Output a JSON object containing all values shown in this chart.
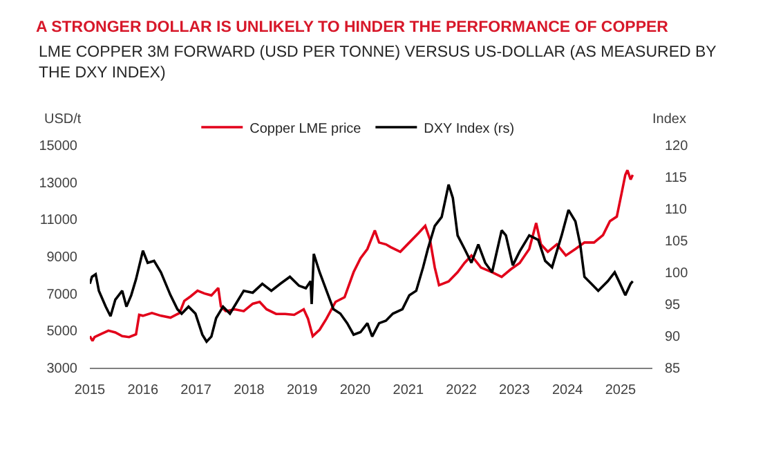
{
  "chart_data": {
    "type": "line",
    "title": "A STRONGER DOLLAR IS UNLIKELY TO HINDER THE PERFORMANCE OF COPPER",
    "subtitle": "LME COPPER 3M FORWARD (USD PER TONNE) VERSUS US-DOLLAR (AS MEASURED BY THE DXY INDEX)",
    "ylabel": "USD/t",
    "y2label": "Index",
    "xlim": [
      2015,
      2025.6
    ],
    "xticks": [
      2015,
      2016,
      2017,
      2018,
      2019,
      2020,
      2021,
      2022,
      2023,
      2024,
      2025
    ],
    "ylim": [
      3000,
      15000
    ],
    "yticks": [
      3000,
      5000,
      7000,
      9000,
      11000,
      13000,
      15000
    ],
    "y2lim": [
      85,
      120
    ],
    "y2ticks": [
      85,
      90,
      95,
      100,
      105,
      110,
      115,
      120
    ],
    "grid": false,
    "legend": "top",
    "line_style": "solid",
    "series": [
      {
        "name": "Copper LME price",
        "color": "#e2001a",
        "x": [
          2015.0,
          2015.05,
          2015.09,
          2015.2,
          2015.35,
          2015.48,
          2015.61,
          2015.74,
          2015.87,
          2015.93,
          2016.0,
          2016.17,
          2016.34,
          2016.52,
          2016.69,
          2016.78,
          2016.9,
          2017.03,
          2017.16,
          2017.29,
          2017.42,
          2017.47,
          2017.56,
          2017.73,
          2017.9,
          2018.07,
          2018.2,
          2018.33,
          2018.51,
          2018.68,
          2018.85,
          2019.03,
          2019.11,
          2019.2,
          2019.33,
          2019.46,
          2019.63,
          2019.8,
          2019.97,
          2020.1,
          2020.23,
          2020.37,
          2020.45,
          2020.58,
          2020.67,
          2020.85,
          2021.02,
          2021.19,
          2021.32,
          2021.41,
          2021.5,
          2021.58,
          2021.76,
          2021.93,
          2022.06,
          2022.19,
          2022.37,
          2022.58,
          2022.76,
          2022.93,
          2023.1,
          2023.28,
          2023.41,
          2023.5,
          2023.63,
          2023.8,
          2023.97,
          2024.15,
          2024.32,
          2024.5,
          2024.67,
          2024.8,
          2024.93,
          2025.02,
          2025.09,
          2025.13,
          2025.19,
          2025.23
        ],
        "values": [
          4700,
          4450,
          4650,
          4800,
          5000,
          4900,
          4700,
          4650,
          4800,
          5850,
          5800,
          5950,
          5800,
          5700,
          5950,
          6600,
          6850,
          7150,
          7000,
          6900,
          7300,
          6300,
          6050,
          6150,
          6050,
          6450,
          6550,
          6150,
          5900,
          5900,
          5850,
          6150,
          5650,
          4700,
          5050,
          5650,
          6550,
          6800,
          8150,
          8900,
          9400,
          10400,
          9750,
          9650,
          9500,
          9250,
          9750,
          10250,
          10650,
          9900,
          8400,
          7450,
          7650,
          8150,
          8650,
          9050,
          8400,
          8150,
          7900,
          8300,
          8650,
          9400,
          10800,
          9650,
          9250,
          9650,
          9050,
          9400,
          9750,
          9750,
          10150,
          10900,
          11150,
          12400,
          13400,
          13650,
          13150,
          13400
        ]
      },
      {
        "name": "DXY Index (rs)",
        "color": "#000000",
        "axis": "y2",
        "x": [
          2015.0,
          2015.04,
          2015.11,
          2015.17,
          2015.3,
          2015.39,
          2015.48,
          2015.61,
          2015.69,
          2015.78,
          2015.87,
          2016.0,
          2016.09,
          2016.21,
          2016.34,
          2016.52,
          2016.65,
          2016.73,
          2016.86,
          2016.99,
          2017.12,
          2017.2,
          2017.29,
          2017.38,
          2017.51,
          2017.64,
          2017.77,
          2017.9,
          2018.07,
          2018.25,
          2018.42,
          2018.59,
          2018.77,
          2018.94,
          2019.07,
          2019.16,
          2019.18,
          2019.22,
          2019.33,
          2019.46,
          2019.59,
          2019.72,
          2019.85,
          2019.97,
          2020.1,
          2020.23,
          2020.32,
          2020.45,
          2020.58,
          2020.71,
          2020.89,
          2021.02,
          2021.15,
          2021.28,
          2021.37,
          2021.5,
          2021.63,
          2021.76,
          2021.84,
          2021.93,
          2022.06,
          2022.19,
          2022.32,
          2022.45,
          2022.58,
          2022.76,
          2022.84,
          2022.97,
          2023.1,
          2023.28,
          2023.45,
          2023.58,
          2023.71,
          2023.89,
          2024.02,
          2024.15,
          2024.24,
          2024.32,
          2024.45,
          2024.58,
          2024.76,
          2024.89,
          2024.97,
          2025.09,
          2025.19,
          2025.23
        ],
        "values": [
          98.2,
          99.3,
          99.7,
          97.1,
          94.6,
          93.1,
          95.7,
          97.1,
          94.6,
          96.4,
          98.9,
          103.4,
          101.5,
          101.8,
          100.0,
          96.4,
          94.2,
          93.5,
          94.6,
          93.5,
          90.2,
          89.1,
          89.9,
          92.8,
          94.6,
          93.5,
          95.3,
          97.1,
          96.8,
          98.2,
          97.1,
          98.2,
          99.3,
          97.9,
          97.5,
          98.6,
          95.0,
          102.9,
          100.0,
          97.1,
          94.2,
          93.5,
          92.0,
          90.2,
          90.6,
          92.0,
          89.9,
          92.0,
          92.4,
          93.5,
          94.2,
          96.4,
          97.1,
          100.8,
          103.7,
          107.3,
          108.7,
          113.8,
          111.7,
          105.8,
          103.7,
          101.5,
          104.4,
          101.5,
          100.0,
          106.6,
          105.8,
          101.1,
          103.3,
          105.8,
          105.1,
          101.8,
          100.8,
          105.8,
          109.8,
          108.0,
          104.4,
          99.3,
          98.2,
          97.1,
          98.6,
          100.0,
          98.6,
          96.4,
          98.2,
          98.6
        ]
      }
    ]
  }
}
